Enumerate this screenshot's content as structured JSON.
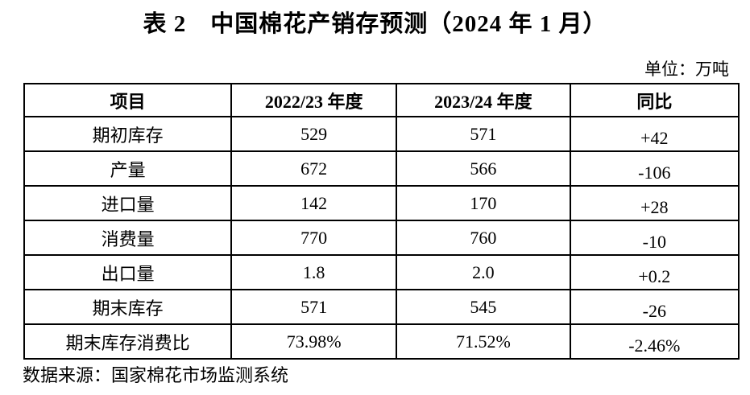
{
  "title": "表 2　中国棉花产销存预测（2024 年 1 月）",
  "unit_label": "单位：万吨",
  "table": {
    "columns": {
      "item": "项目",
      "prev": "2022/23 年度",
      "curr": "2023/24 年度",
      "yoy": "同比"
    },
    "rows": [
      {
        "item": "期初库存",
        "prev": "529",
        "curr": "571",
        "yoy": "+42"
      },
      {
        "item": "产量",
        "prev": "672",
        "curr": "566",
        "yoy": "-106"
      },
      {
        "item": "进口量",
        "prev": "142",
        "curr": "170",
        "yoy": "+28"
      },
      {
        "item": "消费量",
        "prev": "770",
        "curr": "760",
        "yoy": "-10"
      },
      {
        "item": "出口量",
        "prev": "1.8",
        "curr": "2.0",
        "yoy": "+0.2"
      },
      {
        "item": "期末库存",
        "prev": "571",
        "curr": "545",
        "yoy": "-26"
      },
      {
        "item": "期末库存消费比",
        "prev": "73.98%",
        "curr": "71.52%",
        "yoy": "-2.46%"
      }
    ]
  },
  "source": "数据来源：国家棉花市场监测系统",
  "colors": {
    "text": "#000000",
    "background": "#ffffff",
    "border": "#000000"
  }
}
